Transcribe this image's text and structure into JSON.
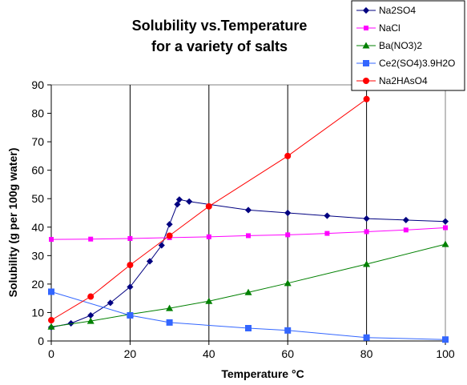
{
  "chart_data": {
    "type": "line",
    "title_lines": [
      "Solubility vs.Temperature",
      "for a variety of salts"
    ],
    "xlabel": "Temperature  °C",
    "ylabel": "Solubility (g per 100g water)",
    "xlim": [
      0,
      100
    ],
    "ylim": [
      0,
      90
    ],
    "xticks": [
      "0",
      "20",
      "40",
      "60",
      "80",
      "100"
    ],
    "yticks": [
      "0",
      "10",
      "20",
      "30",
      "40",
      "50",
      "60",
      "70",
      "80",
      "90"
    ],
    "grid": "vertical",
    "legend_position": "top-right",
    "series": [
      {
        "name": "Na2SO4",
        "color": "#000080",
        "marker": "diamond",
        "points": [
          [
            0,
            4.8
          ],
          [
            5,
            6.2
          ],
          [
            10,
            9.0
          ],
          [
            15,
            13.4
          ],
          [
            20,
            19.0
          ],
          [
            25,
            28.0
          ],
          [
            28,
            33.6
          ],
          [
            30,
            41.0
          ],
          [
            32,
            48.0
          ],
          [
            32.5,
            49.7
          ],
          [
            35,
            49.0
          ],
          [
            50,
            46.0
          ],
          [
            60,
            45.0
          ],
          [
            70,
            44.0
          ],
          [
            80,
            43.0
          ],
          [
            90,
            42.5
          ],
          [
            100,
            42.0
          ]
        ]
      },
      {
        "name": "NaCl",
        "color": "#ff00ff",
        "marker": "square",
        "points": [
          [
            0,
            35.7
          ],
          [
            10,
            35.8
          ],
          [
            20,
            36.0
          ],
          [
            30,
            36.3
          ],
          [
            40,
            36.6
          ],
          [
            50,
            37.0
          ],
          [
            60,
            37.3
          ],
          [
            70,
            37.8
          ],
          [
            80,
            38.4
          ],
          [
            90,
            39.0
          ],
          [
            100,
            39.8
          ]
        ]
      },
      {
        "name": "Ba(NO3)2",
        "color": "#008000",
        "marker": "triangle",
        "points": [
          [
            0,
            5.0
          ],
          [
            10,
            7.0
          ],
          [
            20,
            9.4
          ],
          [
            30,
            11.5
          ],
          [
            40,
            14.0
          ],
          [
            50,
            17.1
          ],
          [
            60,
            20.3
          ],
          [
            80,
            27.0
          ],
          [
            100,
            34.0
          ]
        ]
      },
      {
        "name": " Ce2(SO4)3.9H2O",
        "color": "#3366ff",
        "marker": "square",
        "points": [
          [
            0,
            17.3
          ],
          [
            20,
            9.0
          ],
          [
            30,
            6.5
          ],
          [
            50,
            4.5
          ],
          [
            60,
            3.7
          ],
          [
            80,
            1.2
          ],
          [
            100,
            0.5
          ]
        ]
      },
      {
        "name": "Na2HAsO4",
        "color": "#ff0000",
        "marker": "circle",
        "points": [
          [
            0,
            7.3
          ],
          [
            10,
            15.6
          ],
          [
            20,
            26.7
          ],
          [
            30,
            37.0
          ],
          [
            40,
            47.3
          ],
          [
            60,
            65.0
          ],
          [
            80,
            85.0
          ]
        ]
      }
    ]
  }
}
